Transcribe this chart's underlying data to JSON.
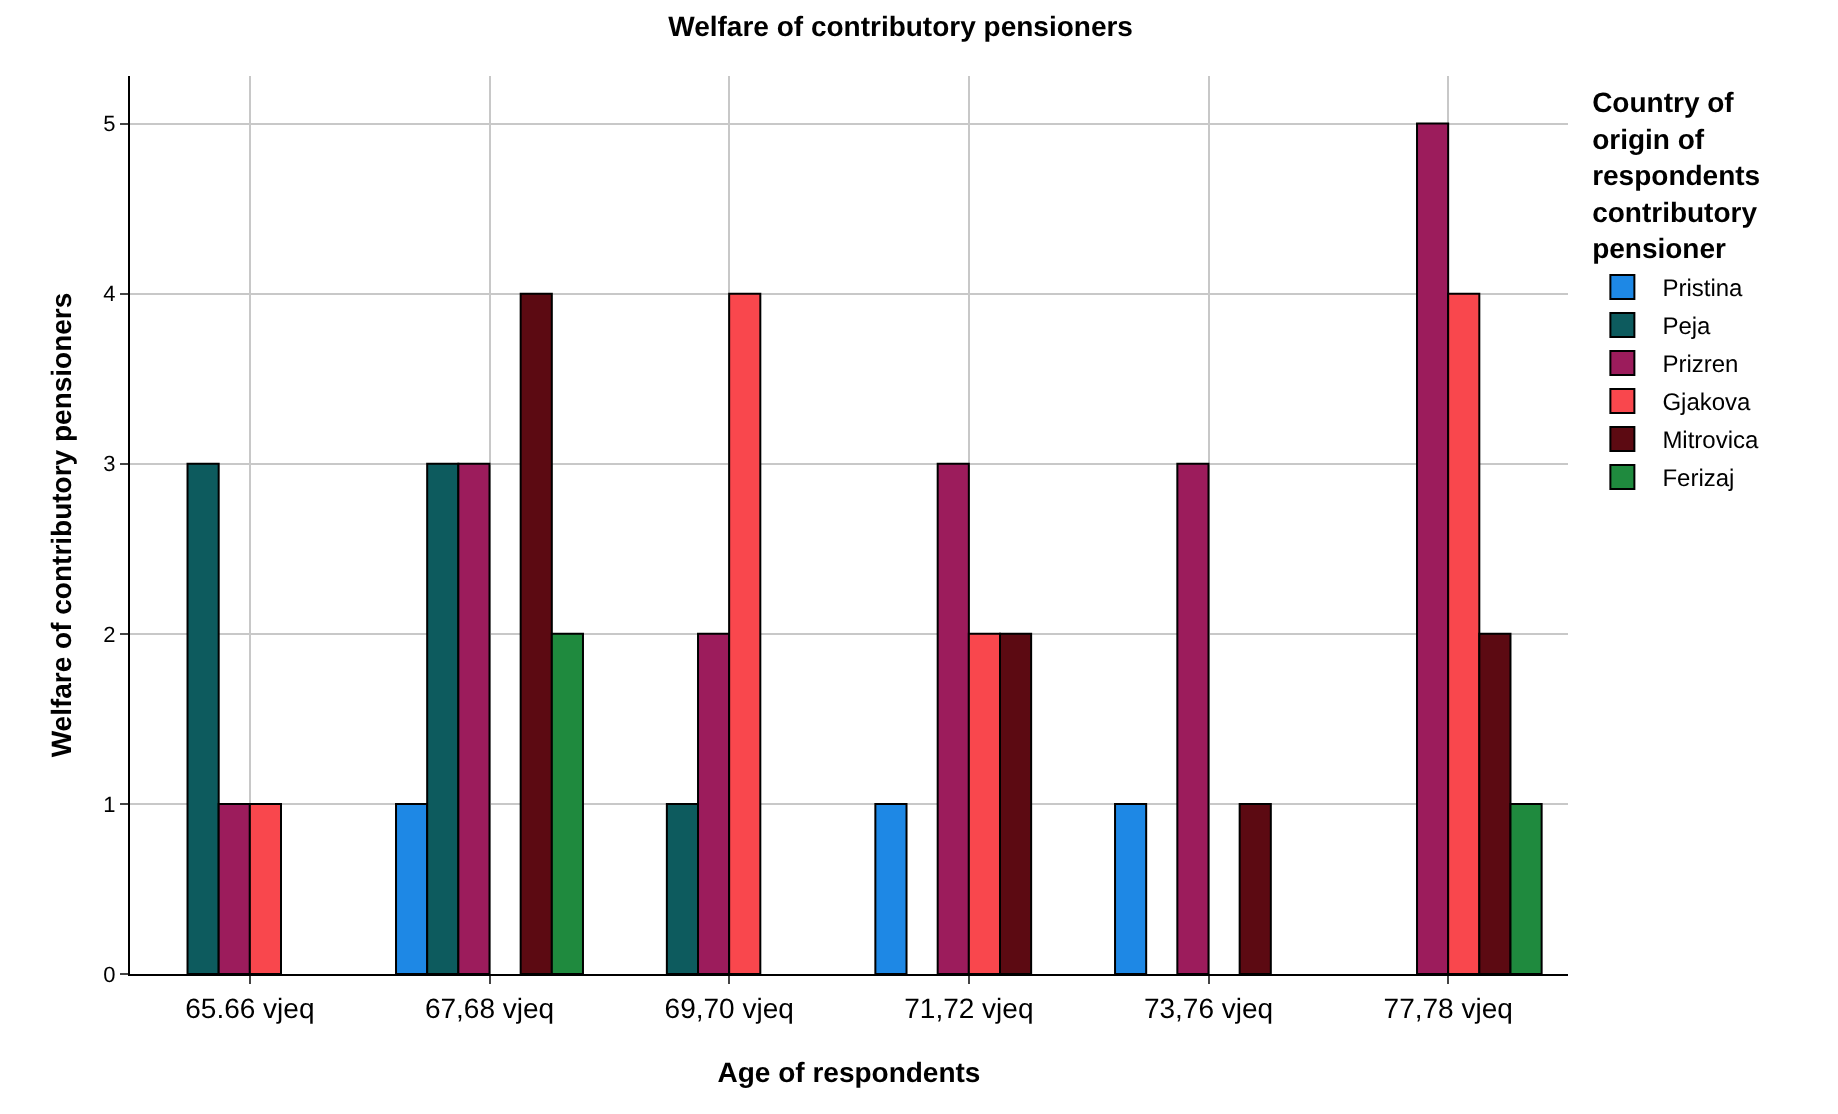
{
  "chart_data": {
    "type": "bar",
    "title": "Welfare of contributory pensioners",
    "xlabel": "Age of respondents",
    "ylabel": "Welfare of contributory pensioners",
    "legend_title": "Country of origin of respondents contributory pensioner",
    "categories": [
      "65.66 vjeq",
      "67,68 vjeq",
      "69,70 vjeq",
      "71,72 vjeq",
      "73,76 vjeq",
      "77,78 vjeq"
    ],
    "series": [
      {
        "name": "Pristina",
        "color": "#1e88e5",
        "values": [
          null,
          1,
          null,
          1,
          1,
          null
        ]
      },
      {
        "name": "Peja",
        "color": "#0d5b5e",
        "values": [
          3,
          3,
          1,
          null,
          null,
          null
        ]
      },
      {
        "name": "Prizren",
        "color": "#9c1c5c",
        "values": [
          1,
          3,
          2,
          3,
          3,
          5
        ]
      },
      {
        "name": "Gjakova",
        "color": "#f9474d",
        "values": [
          1,
          null,
          4,
          2,
          null,
          4
        ]
      },
      {
        "name": "Mitrovica",
        "color": "#5c0a12",
        "values": [
          null,
          4,
          null,
          2,
          1,
          2
        ]
      },
      {
        "name": "Ferizaj",
        "color": "#1f8a3e",
        "values": [
          null,
          2,
          null,
          null,
          null,
          1
        ]
      }
    ],
    "ylim": [
      0,
      5.28
    ],
    "yticks": [
      0,
      1,
      2,
      3,
      4,
      5
    ],
    "grid": true,
    "legend": "top right"
  }
}
